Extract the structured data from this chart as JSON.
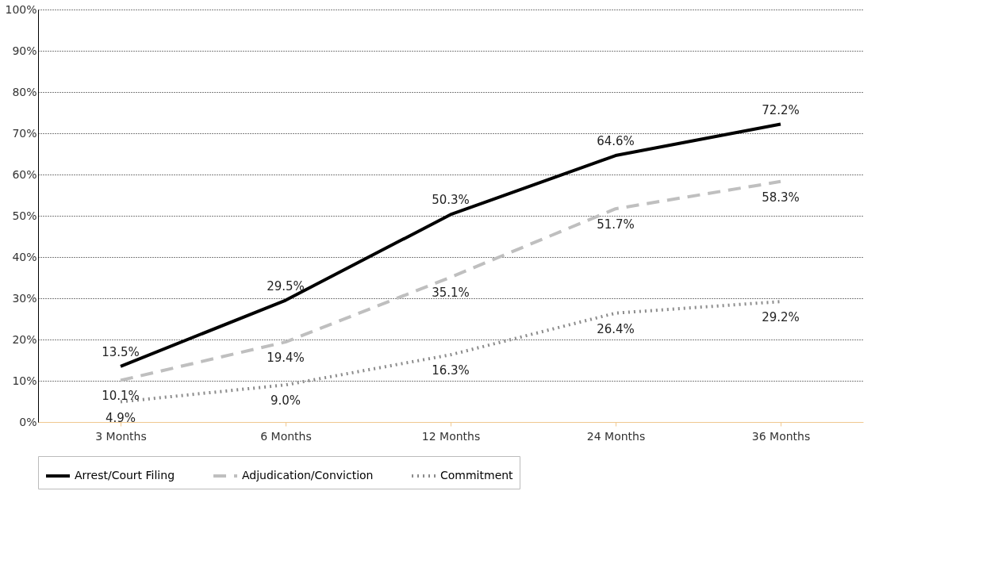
{
  "chart_data": {
    "type": "line",
    "categories": [
      "3 Months",
      "6 Months",
      "12 Months",
      "24 Months",
      "36 Months"
    ],
    "series": [
      {
        "name": "Arrest/Court Filing",
        "color": "#000000",
        "line_style": "solid",
        "values": [
          13.5,
          29.5,
          50.3,
          64.6,
          72.2
        ],
        "value_labels": [
          "13.5%",
          "29.5%",
          "50.3%",
          "64.6%",
          "72.2%"
        ]
      },
      {
        "name": "Adjudication/Conviction",
        "color": "#bfbfbf",
        "line_style": "dashed",
        "values": [
          10.1,
          19.4,
          35.1,
          51.7,
          58.3
        ],
        "value_labels": [
          "10.1%",
          "19.4%",
          "35.1%",
          "51.7%",
          "58.3%"
        ]
      },
      {
        "name": "Commitment",
        "color": "#8c8c8c",
        "line_style": "dotted",
        "values": [
          4.9,
          9.0,
          16.3,
          26.4,
          29.2
        ],
        "value_labels": [
          "4.9%",
          "9.0%",
          "16.3%",
          "26.4%",
          "29.2%"
        ]
      }
    ],
    "ylim": [
      0,
      100
    ],
    "yticks": [
      {
        "value": 0,
        "label": "0%"
      },
      {
        "value": 10,
        "label": "10%"
      },
      {
        "value": 20,
        "label": "20%"
      },
      {
        "value": 30,
        "label": "30%"
      },
      {
        "value": 40,
        "label": "40%"
      },
      {
        "value": 50,
        "label": "50%"
      },
      {
        "value": 60,
        "label": "60%"
      },
      {
        "value": 70,
        "label": "70%"
      },
      {
        "value": 80,
        "label": "80%"
      },
      {
        "value": 90,
        "label": "90%"
      },
      {
        "value": 100,
        "label": "100%"
      }
    ],
    "grid": "y",
    "legend": "bottom",
    "marker": "none"
  }
}
